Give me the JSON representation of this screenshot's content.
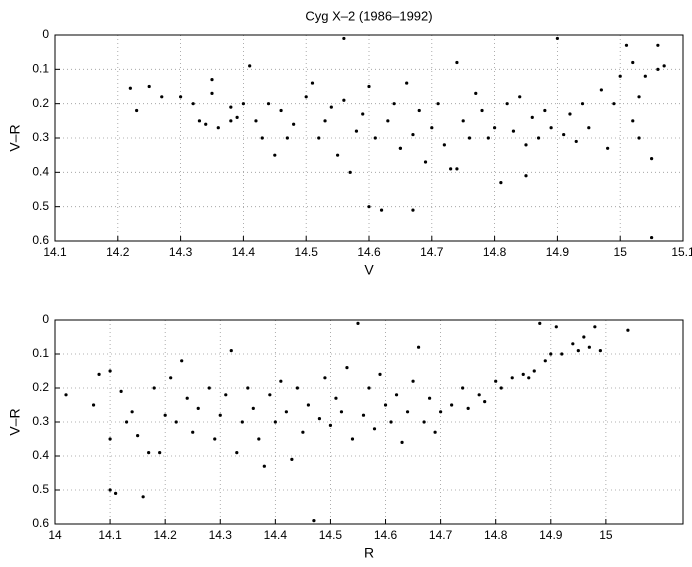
{
  "chart_data": [
    {
      "type": "scatter",
      "title": "Cyg X–2 (1986–1992)",
      "x_label": "V",
      "y_label": "V–R",
      "color": "#000000",
      "grid": true,
      "y_reversed": true,
      "xlim": [
        14.1,
        15.1
      ],
      "ylim": [
        0,
        0.6
      ],
      "xticks": [
        14.1,
        14.2,
        14.3,
        14.4,
        14.5,
        14.6,
        14.7,
        14.8,
        14.9,
        15,
        15.1
      ],
      "yticks": [
        0,
        0.1,
        0.2,
        0.3,
        0.4,
        0.5,
        0.6
      ],
      "x": [
        14.22,
        14.23,
        14.25,
        14.27,
        14.3,
        14.32,
        14.33,
        14.34,
        14.35,
        14.35,
        14.36,
        14.38,
        14.39,
        14.4,
        14.41,
        14.42,
        14.43,
        14.44,
        14.45,
        14.46,
        14.47,
        14.48,
        14.5,
        14.51,
        14.52,
        14.53,
        14.54,
        14.55,
        14.56,
        14.56,
        14.57,
        14.58,
        14.59,
        14.6,
        14.6,
        14.61,
        14.62,
        14.63,
        14.64,
        14.65,
        14.66,
        14.67,
        14.67,
        14.68,
        14.69,
        14.7,
        14.71,
        14.72,
        14.73,
        14.74,
        14.75,
        14.76,
        14.77,
        14.78,
        14.79,
        14.8,
        14.81,
        14.82,
        14.83,
        14.84,
        14.85,
        14.85,
        14.86,
        14.87,
        14.88,
        14.89,
        14.9,
        14.91,
        14.92,
        14.93,
        14.94,
        14.95,
        14.97,
        14.98,
        14.99,
        15.0,
        15.01,
        15.02,
        15.02,
        15.03,
        15.03,
        15.04,
        15.05,
        15.05,
        15.06,
        15.06,
        15.07,
        14.38,
        14.74,
        14.65
      ],
      "values": [
        0.155,
        0.22,
        0.15,
        0.18,
        0.18,
        0.2,
        0.25,
        0.26,
        0.13,
        0.17,
        0.27,
        0.21,
        0.24,
        0.2,
        0.09,
        0.25,
        0.3,
        0.2,
        0.35,
        0.22,
        0.3,
        0.26,
        0.18,
        0.14,
        0.3,
        0.25,
        0.21,
        0.35,
        0.19,
        0.01,
        0.4,
        0.28,
        0.23,
        0.15,
        0.5,
        0.3,
        0.51,
        0.25,
        0.2,
        0.33,
        0.14,
        0.29,
        0.51,
        0.22,
        0.37,
        0.27,
        0.2,
        0.32,
        0.39,
        0.08,
        0.25,
        0.3,
        0.17,
        0.22,
        0.3,
        0.27,
        0.43,
        0.2,
        0.28,
        0.18,
        0.32,
        0.41,
        0.24,
        0.3,
        0.22,
        0.27,
        0.01,
        0.29,
        0.23,
        0.31,
        0.2,
        0.27,
        0.16,
        0.33,
        0.2,
        0.12,
        0.03,
        0.25,
        0.08,
        0.3,
        0.18,
        0.12,
        0.36,
        0.59,
        0.1,
        0.03,
        0.09,
        0.25,
        0.39,
        0.33
      ]
    },
    {
      "type": "scatter",
      "x_label": "R",
      "y_label": "V–R",
      "color": "#000000",
      "grid": true,
      "y_reversed": true,
      "xlim": [
        14,
        15.14
      ],
      "ylim": [
        0,
        0.6
      ],
      "xticks": [
        14,
        14.1,
        14.2,
        14.3,
        14.4,
        14.5,
        14.6,
        14.7,
        14.8,
        14.9,
        15
      ],
      "yticks": [
        0,
        0.1,
        0.2,
        0.3,
        0.4,
        0.5,
        0.6
      ],
      "x": [
        14.02,
        14.07,
        14.08,
        14.1,
        14.1,
        14.1,
        14.11,
        14.12,
        14.13,
        14.14,
        14.15,
        14.16,
        14.17,
        14.18,
        14.19,
        14.2,
        14.21,
        14.22,
        14.23,
        14.24,
        14.25,
        14.26,
        14.28,
        14.29,
        14.3,
        14.31,
        14.32,
        14.33,
        14.34,
        14.35,
        14.36,
        14.37,
        14.38,
        14.39,
        14.4,
        14.41,
        14.42,
        14.43,
        14.44,
        14.45,
        14.46,
        14.47,
        14.48,
        14.49,
        14.5,
        14.51,
        14.52,
        14.53,
        14.54,
        14.55,
        14.56,
        14.57,
        14.58,
        14.59,
        14.6,
        14.61,
        14.62,
        14.63,
        14.64,
        14.65,
        14.66,
        14.67,
        14.68,
        14.69,
        14.7,
        14.72,
        14.74,
        14.75,
        14.77,
        14.78,
        14.8,
        14.81,
        14.83,
        14.85,
        14.86,
        14.87,
        14.88,
        14.89,
        14.9,
        14.91,
        14.92,
        14.94,
        14.95,
        14.96,
        14.97,
        14.98,
        14.99,
        15.04
      ],
      "values": [
        0.22,
        0.25,
        0.16,
        0.15,
        0.35,
        0.5,
        0.51,
        0.21,
        0.3,
        0.27,
        0.34,
        0.52,
        0.39,
        0.2,
        0.39,
        0.28,
        0.17,
        0.3,
        0.12,
        0.23,
        0.33,
        0.26,
        0.2,
        0.35,
        0.28,
        0.22,
        0.09,
        0.39,
        0.3,
        0.2,
        0.26,
        0.35,
        0.43,
        0.22,
        0.3,
        0.18,
        0.27,
        0.41,
        0.2,
        0.33,
        0.25,
        0.59,
        0.29,
        0.17,
        0.31,
        0.23,
        0.27,
        0.14,
        0.35,
        0.01,
        0.28,
        0.2,
        0.32,
        0.16,
        0.25,
        0.3,
        0.22,
        0.36,
        0.27,
        0.18,
        0.08,
        0.3,
        0.23,
        0.33,
        0.27,
        0.25,
        0.2,
        0.26,
        0.22,
        0.24,
        0.18,
        0.2,
        0.17,
        0.16,
        0.17,
        0.15,
        0.01,
        0.12,
        0.1,
        0.02,
        0.1,
        0.07,
        0.09,
        0.05,
        0.08,
        0.02,
        0.09,
        0.03
      ]
    }
  ]
}
